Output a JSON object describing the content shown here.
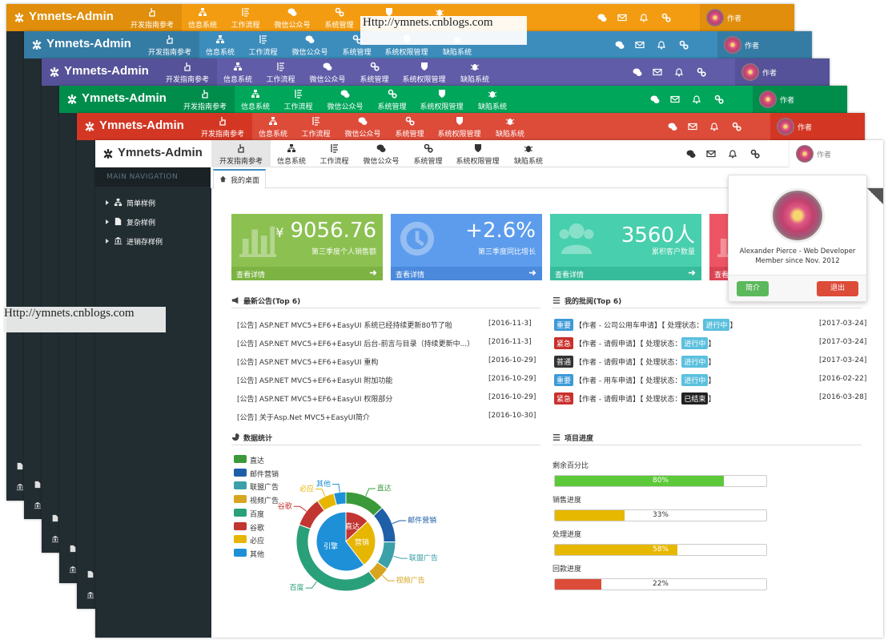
{
  "watermark": "Http://ymnets.cnblogs.com",
  "header": {
    "brand": "Ymnets-Admin",
    "menu": [
      "开发指南参考",
      "信息系统",
      "工作流程",
      "微信公众号",
      "系统管理",
      "系统权限管理",
      "缺陷系统"
    ],
    "user": "作者"
  },
  "sidebar": {
    "title": "MAIN NAVIGATION",
    "items": [
      "简单样例",
      "复杂样例",
      "进销存样例"
    ]
  },
  "tab": "我的桌面",
  "cards": [
    {
      "prefix": "¥",
      "value": "9056.76",
      "caption": "第三季度个人销售额",
      "link": "查看详情"
    },
    {
      "value": "+2.6%",
      "caption": "第三季度同比增长",
      "link": "查看详情"
    },
    {
      "value": "3560人",
      "caption": "累积客户数量",
      "link": "查看详情"
    },
    {
      "link": "查看详情"
    }
  ],
  "profile": {
    "name": "Alexander Pierce - Web Developer",
    "since": "Member since Nov. 2012",
    "buttons": [
      "简介",
      "退出"
    ]
  },
  "notices": {
    "title": "最新公告(Top 6)",
    "rows": [
      {
        "text": "[公告] ASP.NET MVC5+EF6+EasyUI 系统已经持续更新80节了啦",
        "date": "[2016-11-3]"
      },
      {
        "text": "[公告] ASP.NET MVC5+EF6+EasyUI 后台-前言与目录（持续更新中...）",
        "date": "[2016-11-3]"
      },
      {
        "text": "[公告] ASP.NET MVC5+EF6+EasyUI 重构",
        "date": "[2016-10-29]"
      },
      {
        "text": "[公告] ASP.NET MVC5+EF6+EasyUI 附加功能",
        "date": "[2016-10-29]"
      },
      {
        "text": "[公告] ASP.NET MVC5+EF6+EasyUI 权限部分",
        "date": "[2016-10-29]"
      },
      {
        "text": "[公告] 关于Asp.Net MVC5+EasyUI简介",
        "date": "[2016-10-30]"
      }
    ]
  },
  "approvals": {
    "title": "我的批阅(Top 6)",
    "rows": [
      {
        "level": "重要",
        "level_color": "#3c9ad8",
        "text": "【作者 - 公司公用车申请】【 处理状态：",
        "status": "进行中",
        "status_color": "#5bc0de",
        "close": "】",
        "date": "[2017-03-24]"
      },
      {
        "level": "紧急",
        "level_color": "#c9302c",
        "text": "【作者 - 请假申请】【 处理状态：",
        "status": "进行中",
        "status_color": "#5bc0de",
        "close": "】",
        "date": "[2017-03-24]"
      },
      {
        "level": "普通",
        "level_color": "#333333",
        "text": "【作者 - 请假申请】【 处理状态：",
        "status": "进行中",
        "status_color": "#5bc0de",
        "close": "】",
        "date": "[2017-03-24]"
      },
      {
        "level": "重要",
        "level_color": "#3c9ad8",
        "text": "【作者 - 用车申请】【 处理状态：",
        "status": "进行中",
        "status_color": "#5bc0de",
        "close": "】",
        "date": "[2016-02-22]"
      },
      {
        "level": "紧急",
        "level_color": "#c9302c",
        "text": "【作者 - 请假申请】【 处理状态：",
        "status": "已结束",
        "status_color": "#222222",
        "close": "】",
        "date": "[2016-03-28]"
      }
    ]
  },
  "chart_data": {
    "type": "pie",
    "title": "数据统计",
    "series": [
      {
        "categories": [
          "直达",
          "营销",
          "引擎"
        ],
        "values": [
          335,
          679,
          1548
        ],
        "colors": [
          "#c23531",
          "#e6b600",
          "#1e90d8"
        ]
      },
      {
        "categories": [
          "直达",
          "邮件营销",
          "联盟广告",
          "视频广告",
          "百度",
          "谷歌",
          "必应",
          "其他"
        ],
        "values": [
          335,
          310,
          234,
          135,
          1048,
          251,
          147,
          102
        ],
        "colors": [
          "#3a9a3a",
          "#1f5fa8",
          "#3ba0a8",
          "#d9a520",
          "#2aa07a",
          "#c23531",
          "#e6b600",
          "#1e90d8"
        ]
      }
    ]
  },
  "progress": {
    "title": "项目进度",
    "labels": [
      "剩余百分比",
      "销售进度",
      "处理进度",
      "回款进度"
    ],
    "values": [
      80,
      33,
      58,
      22
    ],
    "value_labels": [
      "80%",
      "33%",
      "58%",
      "22%"
    ],
    "colors": [
      "#5cc93a",
      "#e6b800",
      "#e6b800",
      "#dd4b39"
    ],
    "xlim": [
      0,
      100
    ]
  }
}
